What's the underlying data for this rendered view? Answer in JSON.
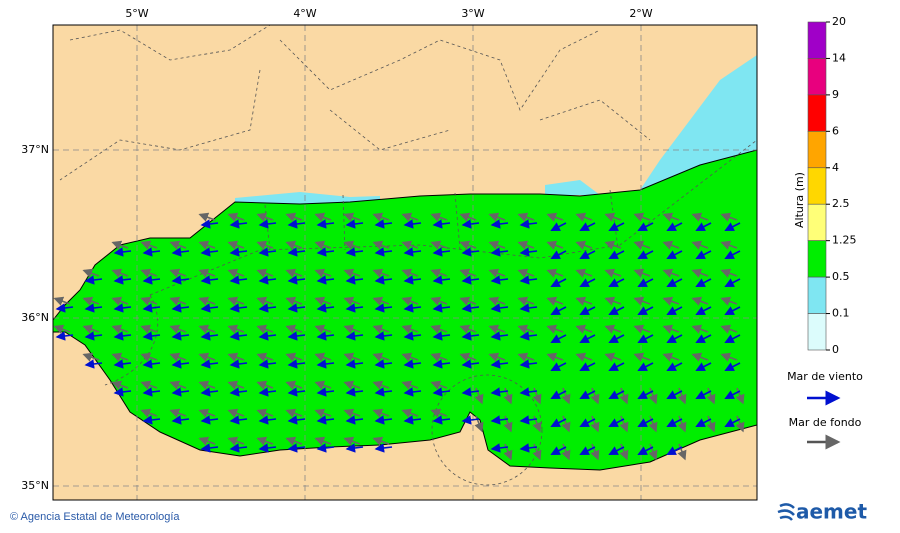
{
  "map": {
    "lon_labels": [
      "5°W",
      "4°W",
      "3°W",
      "2°W"
    ],
    "lat_labels": [
      "37°N",
      "36°N",
      "35°N"
    ],
    "legend": {
      "title": "Altura (m)",
      "ticks": [
        "20",
        "14",
        "9",
        "6",
        "4",
        "2.5",
        "1.25",
        "0.5",
        "0.1",
        "0"
      ],
      "colors": [
        "#a000c8",
        "#e8007e",
        "#ff0000",
        "#ffa500",
        "#ffd700",
        "#ffff78",
        "#00ee00",
        "#7fe6f2",
        "#dcfcfc"
      ]
    },
    "arrow_legend": {
      "wind_sea": "Mar de viento",
      "swell": "Mar de fondo"
    },
    "footer": {
      "credit": "© Agencia Estatal de Meteorología",
      "logo": "aemet"
    }
  }
}
